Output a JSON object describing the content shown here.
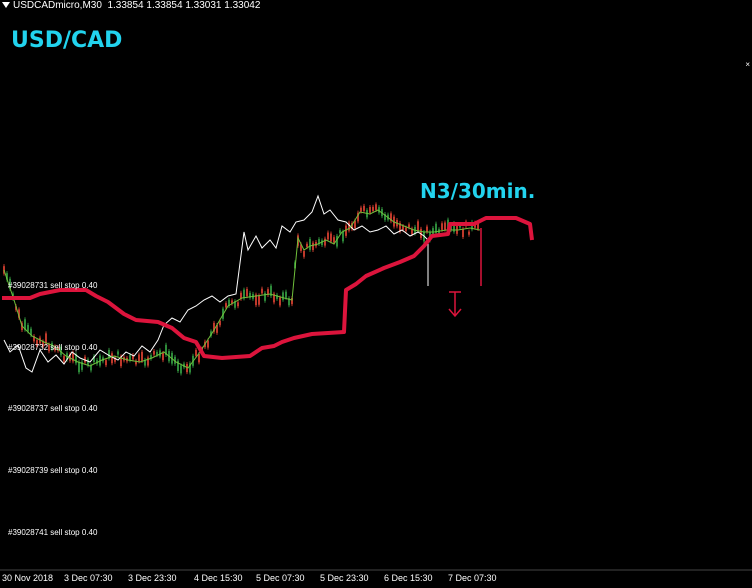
{
  "header": {
    "symbol_info": "USDCADmicro,M30",
    "ohlc": "1.33854 1.33854 1.33031 1.33042"
  },
  "symbol_label": "USD/CAD",
  "annotation": "N3/30min.",
  "corner_icon": "close-icon",
  "orders": [
    {
      "label": "#39028731 sell stop 0.40"
    },
    {
      "label": "#39028732 sell stop 0.40"
    },
    {
      "label": "#39028737 sell stop 0.40"
    },
    {
      "label": "#39028739 sell stop 0.40"
    },
    {
      "label": "#39028741 sell stop 0.40"
    }
  ],
  "x_ticks": [
    "30 Nov 2018",
    "3 Dec 07:30",
    "3 Dec 23:30",
    "4 Dec 15:30",
    "5 Dec 07:30",
    "5 Dec 23:30",
    "6 Dec 15:30",
    "7 Dec 07:30"
  ],
  "colors": {
    "background": "#000000",
    "trend_line": "#dc143c",
    "price_line": "#ffffff",
    "label_accent": "#22d3ee",
    "candles_up": "#2e8b3a",
    "candles_down": "#c0392b",
    "arrow": "#dc143c"
  },
  "chart_data": {
    "type": "line",
    "title": "",
    "note": "Price chart with white close line, red trend step-line and small candles",
    "series": []
  }
}
